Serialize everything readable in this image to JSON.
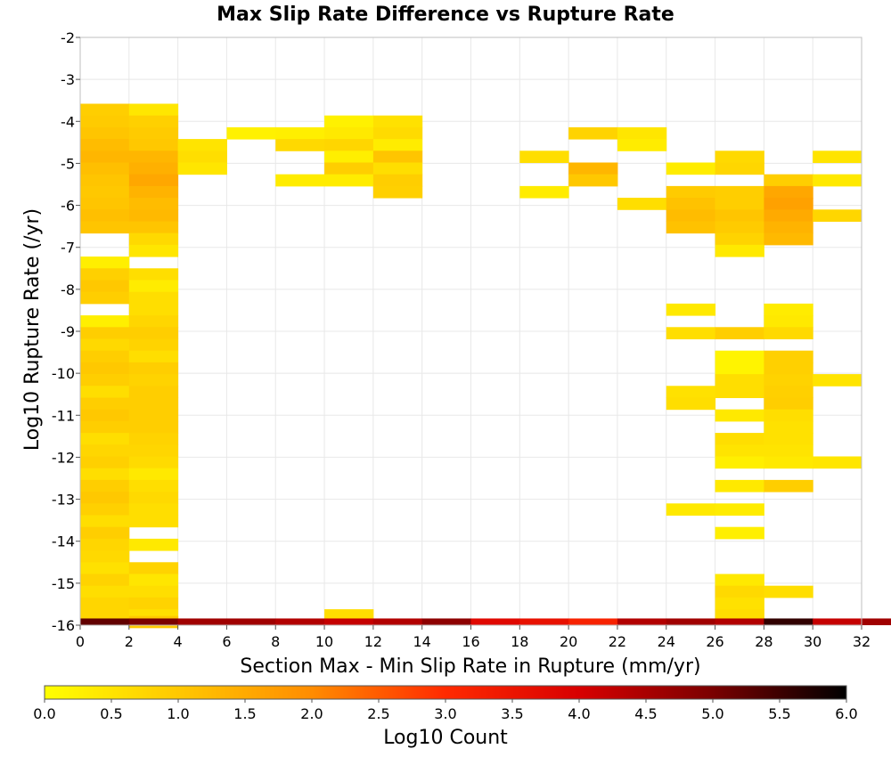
{
  "chart_data": {
    "type": "heatmap",
    "title": "Max Slip Rate Difference vs Rupture Rate",
    "xlabel": "Section Max - Min Slip Rate in Rupture (mm/yr)",
    "ylabel": "Log10 Rupture Rate (/yr)",
    "xlim": [
      0,
      32
    ],
    "ylim": [
      -16,
      -2
    ],
    "x_ticks": [
      "0",
      "2",
      "4",
      "6",
      "8",
      "10",
      "12",
      "14",
      "16",
      "18",
      "20",
      "22",
      "24",
      "26",
      "28",
      "30",
      "32"
    ],
    "y_ticks": [
      "-2",
      "-3",
      "-4",
      "-5",
      "-6",
      "-7",
      "-8",
      "-9",
      "-10",
      "-11",
      "-12",
      "-13",
      "-14",
      "-15",
      "-16"
    ],
    "grid": true,
    "bin_width_x": 2,
    "bin_height_y": 0.28,
    "colorbar": {
      "label": "Log10 Count",
      "range": [
        0,
        6
      ],
      "ticks": [
        "0.0",
        "0.5",
        "1.0",
        "1.5",
        "2.0",
        "2.5",
        "3.0",
        "3.5",
        "4.0",
        "4.5",
        "5.0",
        "5.5",
        "6.0"
      ],
      "colors": [
        "#ffff00",
        "#ffc800",
        "#ff8c00",
        "#ff2a00",
        "#d80000",
        "#7a0000",
        "#000000"
      ]
    },
    "cells": [
      [
        0,
        -3.72,
        0.9
      ],
      [
        0,
        -4.0,
        0.95
      ],
      [
        0,
        -4.28,
        1.05
      ],
      [
        0,
        -4.56,
        1.2
      ],
      [
        0,
        -4.84,
        1.3
      ],
      [
        0,
        -5.12,
        1.15
      ],
      [
        0,
        -5.4,
        1.05
      ],
      [
        0,
        -5.68,
        1.0
      ],
      [
        0,
        -5.96,
        1.05
      ],
      [
        0,
        -6.24,
        1.15
      ],
      [
        0,
        -6.52,
        1.05
      ],
      [
        0,
        -7.36,
        0.3
      ],
      [
        0,
        -7.64,
        0.85
      ],
      [
        0,
        -7.92,
        1.0
      ],
      [
        0,
        -8.2,
        0.9
      ],
      [
        0,
        -8.76,
        0.3
      ],
      [
        0,
        -9.04,
        0.9
      ],
      [
        0,
        -9.32,
        0.7
      ],
      [
        0,
        -9.6,
        0.9
      ],
      [
        0,
        -9.88,
        1.0
      ],
      [
        0,
        -10.16,
        0.9
      ],
      [
        0,
        -10.44,
        0.6
      ],
      [
        0,
        -10.72,
        0.9
      ],
      [
        0,
        -11.0,
        1.0
      ],
      [
        0,
        -11.28,
        0.9
      ],
      [
        0,
        -11.56,
        0.6
      ],
      [
        0,
        -11.84,
        0.75
      ],
      [
        0,
        -12.12,
        0.85
      ],
      [
        0,
        -12.4,
        0.6
      ],
      [
        0,
        -12.68,
        0.9
      ],
      [
        0,
        -12.96,
        1.0
      ],
      [
        0,
        -13.24,
        0.85
      ],
      [
        0,
        -13.52,
        0.6
      ],
      [
        0,
        -13.8,
        0.9
      ],
      [
        0,
        -14.08,
        0.75
      ],
      [
        0,
        -14.36,
        0.7
      ],
      [
        0,
        -14.64,
        0.55
      ],
      [
        0,
        -14.92,
        0.8
      ],
      [
        0,
        -15.2,
        0.6
      ],
      [
        0,
        -15.48,
        0.75
      ],
      [
        0,
        -15.76,
        0.75
      ],
      [
        2,
        -3.72,
        0.45
      ],
      [
        2,
        -4.0,
        0.85
      ],
      [
        2,
        -4.28,
        0.95
      ],
      [
        2,
        -4.56,
        1.0
      ],
      [
        2,
        -4.84,
        1.3
      ],
      [
        2,
        -5.12,
        1.4
      ],
      [
        2,
        -5.4,
        1.55
      ],
      [
        2,
        -5.68,
        1.35
      ],
      [
        2,
        -5.96,
        1.2
      ],
      [
        2,
        -6.24,
        1.25
      ],
      [
        2,
        -6.52,
        1.05
      ],
      [
        2,
        -6.8,
        0.7
      ],
      [
        2,
        -7.08,
        0.45
      ],
      [
        2,
        -7.64,
        0.6
      ],
      [
        2,
        -7.92,
        0.35
      ],
      [
        2,
        -8.2,
        0.6
      ],
      [
        2,
        -8.48,
        0.6
      ],
      [
        2,
        -8.76,
        0.75
      ],
      [
        2,
        -9.04,
        0.9
      ],
      [
        2,
        -9.32,
        0.8
      ],
      [
        2,
        -9.6,
        0.6
      ],
      [
        2,
        -9.88,
        0.9
      ],
      [
        2,
        -10.16,
        0.8
      ],
      [
        2,
        -10.44,
        0.9
      ],
      [
        2,
        -10.72,
        0.9
      ],
      [
        2,
        -11.0,
        0.9
      ],
      [
        2,
        -11.28,
        0.9
      ],
      [
        2,
        -11.56,
        0.8
      ],
      [
        2,
        -11.84,
        0.75
      ],
      [
        2,
        -12.12,
        0.65
      ],
      [
        2,
        -12.4,
        0.4
      ],
      [
        2,
        -12.68,
        0.6
      ],
      [
        2,
        -12.96,
        0.7
      ],
      [
        2,
        -13.24,
        0.6
      ],
      [
        2,
        -13.52,
        0.6
      ],
      [
        2,
        -14.08,
        0.4
      ],
      [
        2,
        -14.64,
        0.8
      ],
      [
        2,
        -14.92,
        0.45
      ],
      [
        2,
        -15.2,
        0.6
      ],
      [
        2,
        -15.48,
        0.8
      ],
      [
        2,
        -15.76,
        0.6
      ],
      [
        2,
        -15.92,
        1.0
      ],
      [
        4,
        -4.56,
        0.5
      ],
      [
        4,
        -4.84,
        0.6
      ],
      [
        4,
        -5.12,
        0.45
      ],
      [
        6,
        -4.28,
        0.25
      ],
      [
        8,
        -4.28,
        0.3
      ],
      [
        8,
        -4.56,
        0.7
      ],
      [
        8,
        -5.4,
        0.35
      ],
      [
        10,
        -4.0,
        0.25
      ],
      [
        10,
        -4.28,
        0.4
      ],
      [
        10,
        -4.56,
        0.75
      ],
      [
        10,
        -4.84,
        0.3
      ],
      [
        10,
        -5.12,
        0.9
      ],
      [
        10,
        -5.4,
        0.35
      ],
      [
        10,
        -15.76,
        0.6
      ],
      [
        12,
        -4.0,
        0.55
      ],
      [
        12,
        -4.28,
        0.65
      ],
      [
        12,
        -4.56,
        0.35
      ],
      [
        12,
        -4.84,
        1.05
      ],
      [
        12,
        -5.12,
        0.6
      ],
      [
        12,
        -5.4,
        0.9
      ],
      [
        12,
        -5.68,
        0.85
      ],
      [
        18,
        -4.84,
        0.6
      ],
      [
        18,
        -5.68,
        0.35
      ],
      [
        20,
        -4.28,
        0.8
      ],
      [
        20,
        -5.12,
        1.3
      ],
      [
        20,
        -5.4,
        1.0
      ],
      [
        22,
        -4.28,
        0.45
      ],
      [
        22,
        -4.56,
        0.35
      ],
      [
        22,
        -5.96,
        0.6
      ],
      [
        24,
        -5.12,
        0.35
      ],
      [
        24,
        -5.68,
        0.95
      ],
      [
        24,
        -5.96,
        1.1
      ],
      [
        24,
        -6.24,
        1.2
      ],
      [
        24,
        -6.52,
        1.1
      ],
      [
        24,
        -8.48,
        0.4
      ],
      [
        24,
        -9.04,
        0.6
      ],
      [
        24,
        -10.44,
        0.55
      ],
      [
        24,
        -10.72,
        0.6
      ],
      [
        24,
        -13.24,
        0.4
      ],
      [
        26,
        -4.84,
        0.7
      ],
      [
        26,
        -5.12,
        0.75
      ],
      [
        26,
        -5.68,
        0.9
      ],
      [
        26,
        -5.96,
        0.9
      ],
      [
        26,
        -6.24,
        1.05
      ],
      [
        26,
        -6.52,
        0.95
      ],
      [
        26,
        -6.8,
        0.8
      ],
      [
        26,
        -7.08,
        0.4
      ],
      [
        26,
        -9.04,
        0.9
      ],
      [
        26,
        -9.6,
        0.2
      ],
      [
        26,
        -9.88,
        0.2
      ],
      [
        26,
        -10.16,
        0.6
      ],
      [
        26,
        -10.44,
        0.6
      ],
      [
        26,
        -11.0,
        0.4
      ],
      [
        26,
        -11.56,
        0.6
      ],
      [
        26,
        -11.84,
        0.5
      ],
      [
        26,
        -12.12,
        0.3
      ],
      [
        26,
        -12.68,
        0.4
      ],
      [
        26,
        -13.24,
        0.35
      ],
      [
        26,
        -13.8,
        0.3
      ],
      [
        26,
        -14.92,
        0.4
      ],
      [
        26,
        -15.2,
        0.7
      ],
      [
        26,
        -15.48,
        0.55
      ],
      [
        26,
        -15.76,
        0.6
      ],
      [
        28,
        -5.4,
        0.9
      ],
      [
        28,
        -5.68,
        1.55
      ],
      [
        28,
        -5.96,
        1.65
      ],
      [
        28,
        -6.24,
        1.5
      ],
      [
        28,
        -6.52,
        1.35
      ],
      [
        28,
        -6.8,
        1.25
      ],
      [
        28,
        -8.48,
        0.35
      ],
      [
        28,
        -8.76,
        0.4
      ],
      [
        28,
        -9.04,
        0.7
      ],
      [
        28,
        -9.6,
        0.85
      ],
      [
        28,
        -9.88,
        0.85
      ],
      [
        28,
        -10.16,
        0.8
      ],
      [
        28,
        -10.44,
        0.85
      ],
      [
        28,
        -10.72,
        0.9
      ],
      [
        28,
        -11.0,
        0.6
      ],
      [
        28,
        -11.28,
        0.55
      ],
      [
        28,
        -11.56,
        0.55
      ],
      [
        28,
        -11.84,
        0.5
      ],
      [
        28,
        -12.12,
        0.4
      ],
      [
        28,
        -12.68,
        0.9
      ],
      [
        28,
        -15.2,
        0.6
      ],
      [
        30,
        -4.84,
        0.5
      ],
      [
        30,
        -5.4,
        0.4
      ],
      [
        30,
        -6.24,
        0.75
      ],
      [
        30,
        -10.16,
        0.5
      ],
      [
        30,
        -12.12,
        0.45
      ]
    ],
    "baseline_row": {
      "y": -15.92,
      "values": [
        5.2,
        5.0,
        4.6,
        4.6,
        4.4,
        4.2,
        4.4,
        4.8,
        3.8,
        3.6,
        3.2,
        4.4,
        4.6,
        4.4,
        5.6,
        4.2,
        4.6
      ]
    }
  }
}
